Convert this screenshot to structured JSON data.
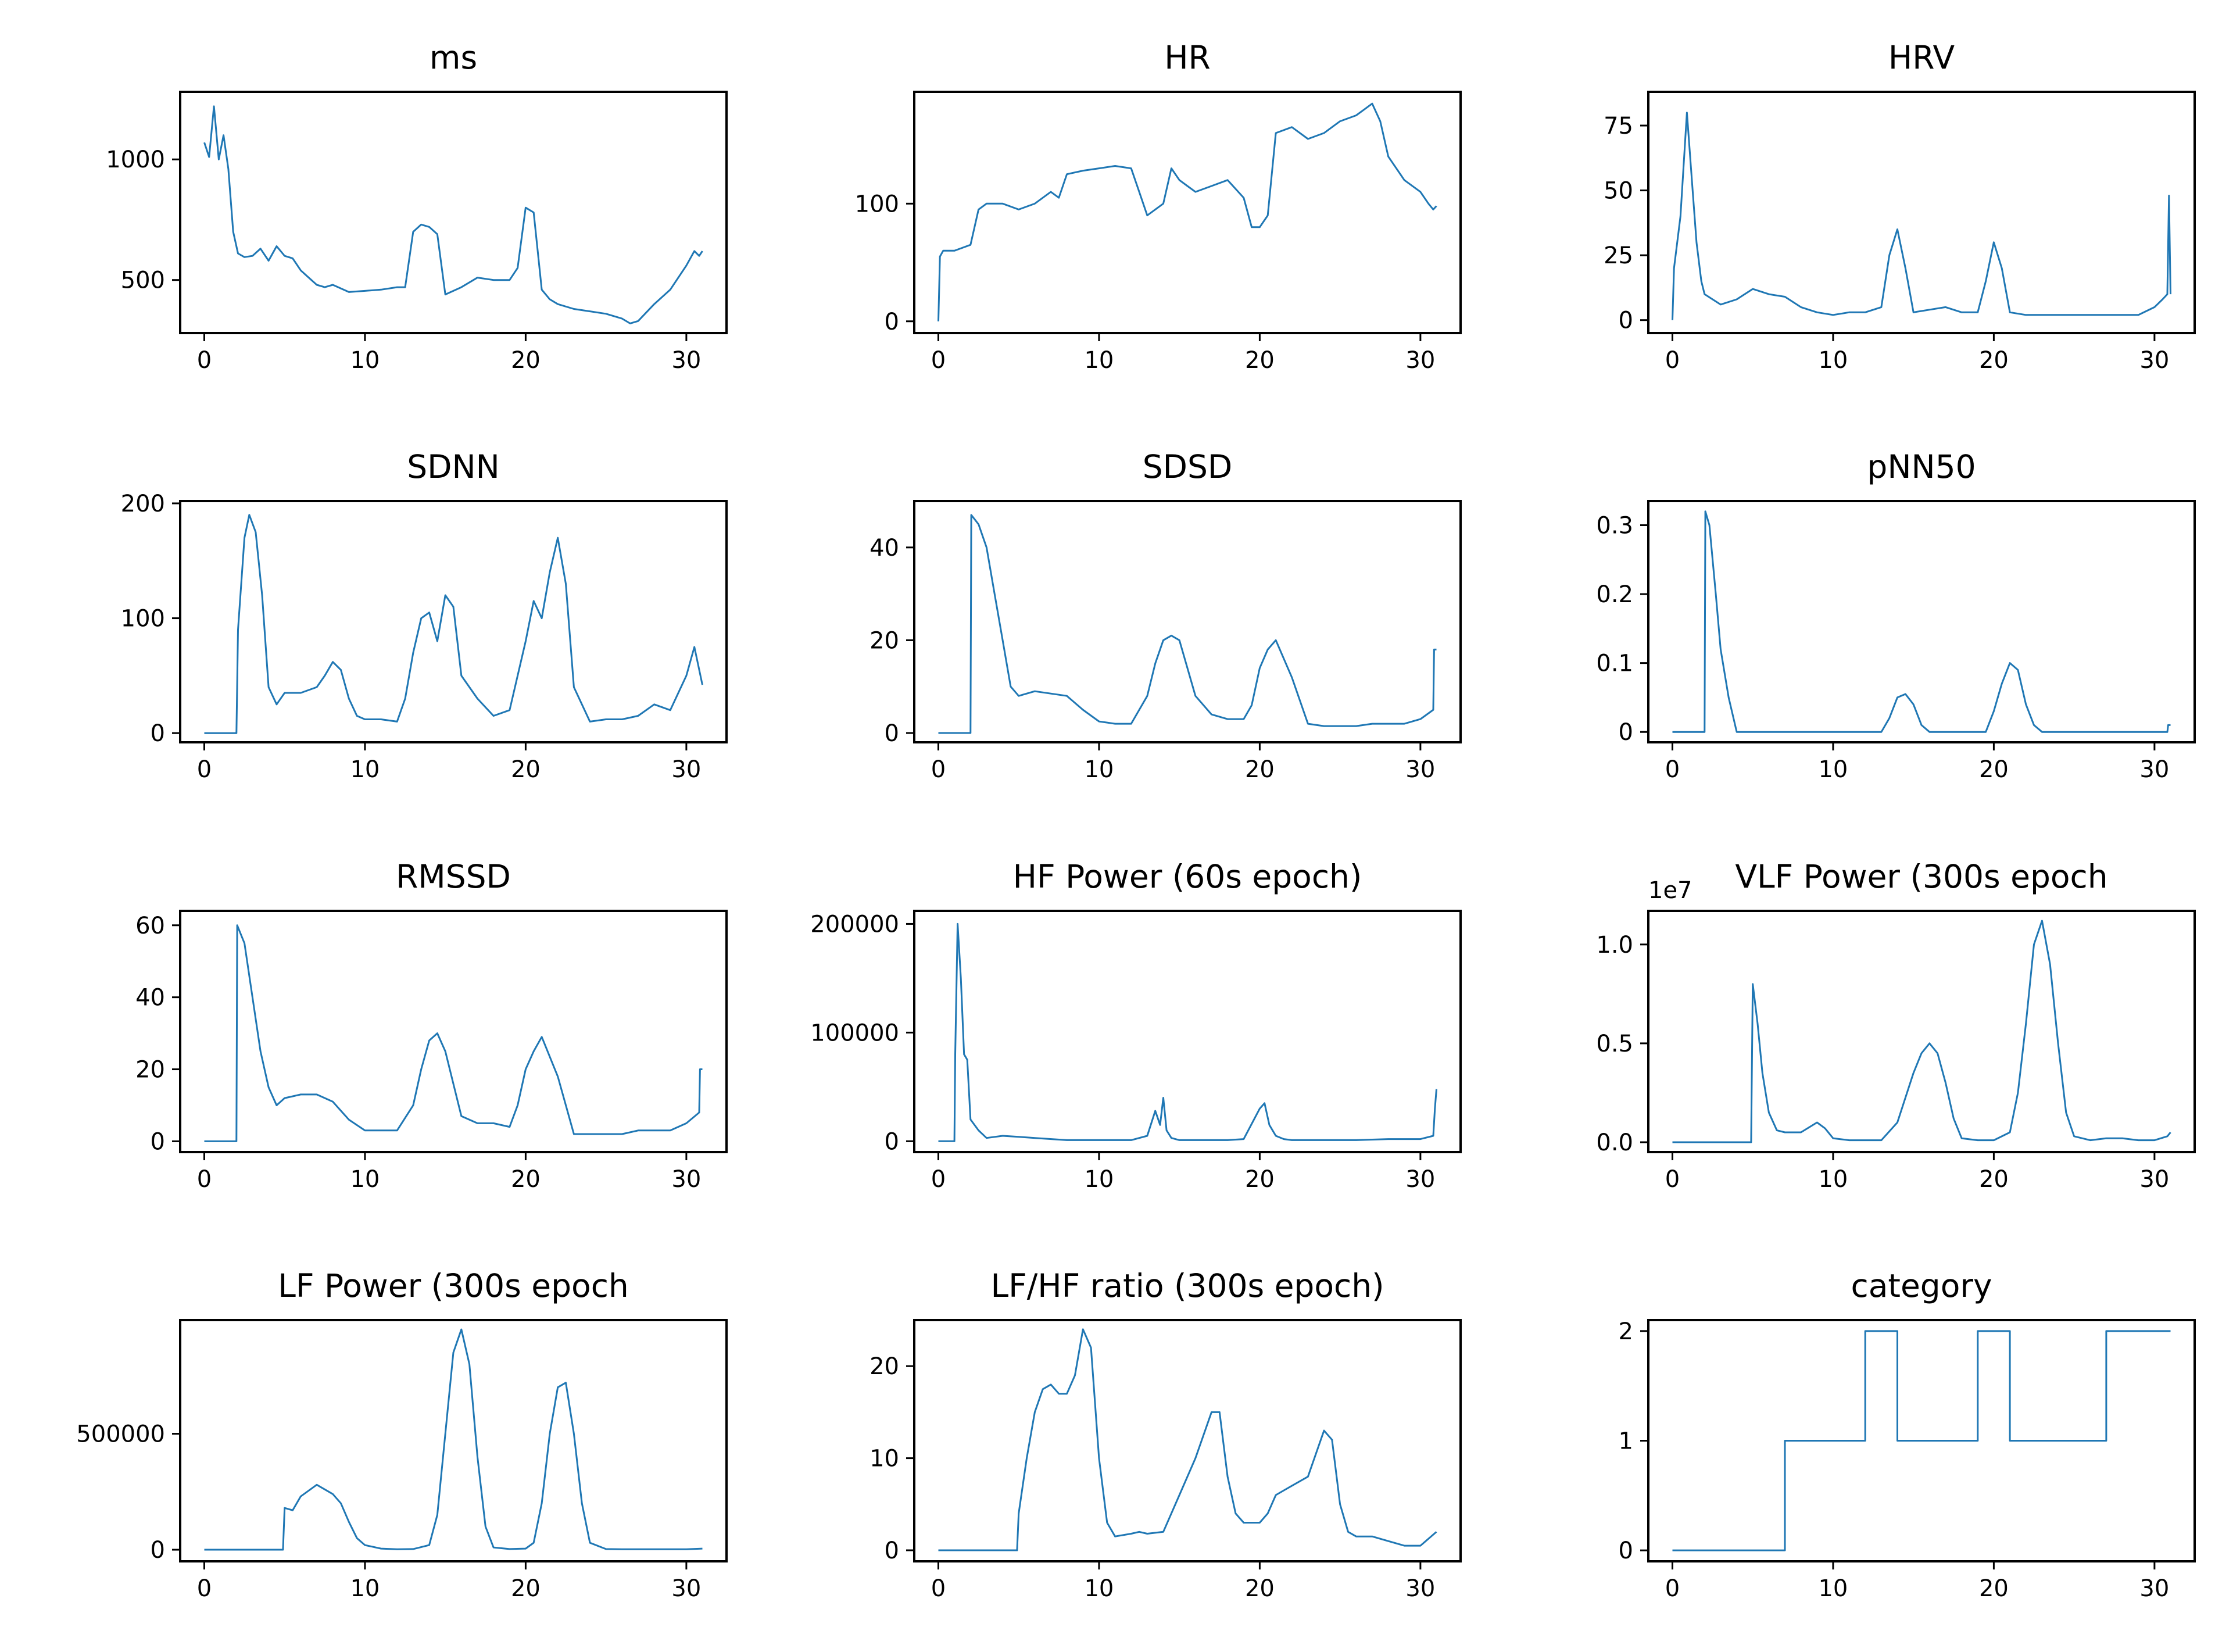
{
  "figure": {
    "line_color": "#1f77b4"
  },
  "chart_data": [
    {
      "type": "line",
      "title": "ms",
      "xlim": [
        -1.5,
        32.5
      ],
      "ylim": [
        280,
        1280
      ],
      "xticks": [
        0,
        10,
        20,
        30
      ],
      "yticks": [
        500,
        1000
      ],
      "x": [
        0,
        0.3,
        0.6,
        0.9,
        1.2,
        1.5,
        1.8,
        2.1,
        2.5,
        3,
        3.5,
        4,
        4.5,
        5,
        5.5,
        6,
        6.5,
        7,
        7.5,
        8,
        9,
        10,
        11,
        12,
        12.5,
        13,
        13.5,
        14,
        14.5,
        15,
        16,
        17,
        18,
        19,
        19.5,
        20,
        20.5,
        21,
        21.5,
        22,
        23,
        24,
        25,
        26,
        26.5,
        27,
        28,
        29,
        30,
        30.5,
        30.8,
        31
      ],
      "series": [
        {
          "values": [
            1070,
            1010,
            1220,
            1000,
            1100,
            960,
            700,
            610,
            595,
            600,
            630,
            580,
            640,
            600,
            590,
            540,
            510,
            480,
            470,
            480,
            450,
            455,
            460,
            470,
            470,
            700,
            730,
            720,
            690,
            440,
            470,
            510,
            500,
            500,
            550,
            800,
            780,
            460,
            420,
            400,
            380,
            370,
            360,
            340,
            320,
            330,
            400,
            460,
            560,
            620,
            600,
            620
          ]
        }
      ]
    },
    {
      "type": "line",
      "title": "HR",
      "xlim": [
        -1.5,
        32.5
      ],
      "ylim": [
        -10,
        195
      ],
      "xticks": [
        0,
        10,
        20,
        30
      ],
      "yticks": [
        0,
        100
      ],
      "x": [
        0,
        0.1,
        0.3,
        1,
        2,
        2.5,
        3,
        4,
        5,
        6,
        7,
        7.5,
        8,
        9,
        10,
        11,
        12,
        12.5,
        13,
        13.5,
        14,
        14.5,
        15,
        15.5,
        16,
        17,
        18,
        19,
        19.5,
        20,
        20.5,
        21,
        22,
        23,
        24,
        25,
        26,
        26.5,
        27,
        27.5,
        28,
        29,
        30,
        30.5,
        30.8,
        31
      ],
      "series": [
        {
          "values": [
            0,
            55,
            60,
            60,
            65,
            95,
            100,
            100,
            95,
            100,
            110,
            105,
            125,
            128,
            130,
            132,
            130,
            110,
            90,
            95,
            100,
            130,
            120,
            115,
            110,
            115,
            120,
            105,
            80,
            80,
            90,
            160,
            165,
            155,
            160,
            170,
            175,
            180,
            185,
            170,
            140,
            120,
            110,
            100,
            95,
            98
          ]
        }
      ]
    },
    {
      "type": "line",
      "title": "HRV",
      "xlim": [
        -1.5,
        32.5
      ],
      "ylim": [
        -5,
        88
      ],
      "xticks": [
        0,
        10,
        20,
        30
      ],
      "yticks": [
        0,
        25,
        50,
        75
      ],
      "x": [
        0,
        0.1,
        0.5,
        0.9,
        1.2,
        1.5,
        1.8,
        2,
        2.5,
        3,
        4,
        5,
        6,
        7,
        8,
        9,
        10,
        11,
        12,
        13,
        13.5,
        14,
        14.5,
        15,
        16,
        17,
        18,
        19,
        19.5,
        20,
        20.5,
        21,
        22,
        23,
        24,
        25,
        26,
        27,
        28,
        29,
        30,
        30.5,
        30.8,
        30.9,
        31
      ],
      "series": [
        {
          "values": [
            0,
            20,
            40,
            80,
            55,
            30,
            15,
            10,
            8,
            6,
            8,
            12,
            10,
            9,
            5,
            3,
            2,
            3,
            3,
            5,
            25,
            35,
            20,
            3,
            4,
            5,
            3,
            3,
            15,
            30,
            20,
            3,
            2,
            2,
            2,
            2,
            2,
            2,
            2,
            2,
            5,
            8,
            10,
            48,
            10
          ]
        }
      ]
    },
    {
      "type": "line",
      "title": "SDNN",
      "xlim": [
        -1.5,
        32.5
      ],
      "ylim": [
        -8,
        202
      ],
      "xticks": [
        0,
        10,
        20,
        30
      ],
      "yticks": [
        0,
        100,
        200
      ],
      "x": [
        0,
        1,
        2,
        2.1,
        2.5,
        2.8,
        3.2,
        3.6,
        4,
        4.5,
        5,
        6,
        7,
        7.5,
        8,
        8.5,
        9,
        9.5,
        10,
        11,
        12,
        12.5,
        13,
        13.5,
        14,
        14.5,
        15,
        15.5,
        16,
        17,
        18,
        19,
        20,
        20.5,
        21,
        21.5,
        22,
        22.5,
        23,
        24,
        25,
        26,
        27,
        28,
        29,
        30,
        30.5,
        31
      ],
      "series": [
        {
          "values": [
            0,
            0,
            0,
            90,
            170,
            190,
            175,
            120,
            40,
            25,
            35,
            35,
            40,
            50,
            62,
            55,
            30,
            15,
            12,
            12,
            10,
            30,
            70,
            100,
            105,
            80,
            120,
            110,
            50,
            30,
            15,
            20,
            80,
            115,
            100,
            140,
            170,
            130,
            40,
            10,
            12,
            12,
            15,
            25,
            20,
            50,
            75,
            42
          ]
        }
      ]
    },
    {
      "type": "line",
      "title": "SDSD",
      "xlim": [
        -1.5,
        32.5
      ],
      "ylim": [
        -2,
        50
      ],
      "xticks": [
        0,
        10,
        20,
        30
      ],
      "yticks": [
        0,
        20,
        40
      ],
      "x": [
        0,
        1,
        2,
        2.05,
        2.5,
        3,
        3.5,
        4,
        4.5,
        5,
        6,
        7,
        8,
        9,
        10,
        11,
        12,
        13,
        13.5,
        14,
        14.5,
        15,
        16,
        17,
        18,
        19,
        19.5,
        20,
        20.5,
        21,
        22,
        23,
        24,
        25,
        26,
        27,
        28,
        29,
        30,
        30.8,
        30.85,
        31
      ],
      "series": [
        {
          "values": [
            0,
            0,
            0,
            47,
            45,
            40,
            30,
            20,
            10,
            8,
            9,
            8.5,
            8,
            5,
            2.5,
            2,
            2,
            8,
            15,
            20,
            21,
            20,
            8,
            4,
            3,
            3,
            6,
            14,
            18,
            20,
            12,
            2,
            1.5,
            1.5,
            1.5,
            2,
            2,
            2,
            3,
            5,
            18,
            18
          ]
        }
      ]
    },
    {
      "type": "line",
      "title": "pNN50",
      "xlim": [
        -1.5,
        32.5
      ],
      "ylim": [
        -0.015,
        0.335
      ],
      "xticks": [
        0,
        10,
        20,
        30
      ],
      "yticks": [
        0.0,
        0.1,
        0.2,
        0.3
      ],
      "x": [
        0,
        1,
        2,
        2.05,
        2.3,
        2.7,
        3,
        3.5,
        4,
        5,
        10,
        12,
        13,
        13.5,
        14,
        14.5,
        15,
        15.5,
        16,
        18,
        19,
        19.5,
        20,
        20.5,
        21,
        21.5,
        22,
        22.5,
        23,
        25,
        27,
        30,
        30.8,
        30.85,
        31
      ],
      "series": [
        {
          "values": [
            0,
            0,
            0,
            0.32,
            0.3,
            0.2,
            0.12,
            0.05,
            0,
            0,
            0,
            0,
            0,
            0.02,
            0.05,
            0.055,
            0.04,
            0.01,
            0,
            0,
            0,
            0,
            0.03,
            0.07,
            0.1,
            0.09,
            0.04,
            0.01,
            0,
            0,
            0,
            0,
            0,
            0.01,
            0.01
          ]
        }
      ]
    },
    {
      "type": "line",
      "title": "RMSSD",
      "xlim": [
        -1.5,
        32.5
      ],
      "ylim": [
        -3,
        64
      ],
      "xticks": [
        0,
        10,
        20,
        30
      ],
      "yticks": [
        0,
        20,
        40,
        60
      ],
      "x": [
        0,
        1,
        2,
        2.05,
        2.5,
        3,
        3.5,
        4,
        4.5,
        5,
        6,
        7,
        8,
        9,
        10,
        11,
        12,
        13,
        13.5,
        14,
        14.5,
        15,
        16,
        17,
        18,
        19,
        19.5,
        20,
        20.5,
        21,
        22,
        23,
        24,
        25,
        26,
        27,
        28,
        29,
        30,
        30.8,
        30.85,
        31
      ],
      "series": [
        {
          "values": [
            0,
            0,
            0,
            60,
            55,
            40,
            25,
            15,
            10,
            12,
            13,
            13,
            11,
            6,
            3,
            3,
            3,
            10,
            20,
            28,
            30,
            25,
            7,
            5,
            5,
            4,
            10,
            20,
            25,
            29,
            18,
            2,
            2,
            2,
            2,
            3,
            3,
            3,
            5,
            8,
            20,
            20
          ]
        }
      ]
    },
    {
      "type": "line",
      "title": "HF Power (60s epoch)",
      "xlim": [
        -1.5,
        32.5
      ],
      "ylim": [
        -10000,
        212000
      ],
      "xticks": [
        0,
        10,
        20,
        30
      ],
      "yticks": [
        0,
        100000,
        200000
      ],
      "x": [
        0,
        0.5,
        1,
        1.05,
        1.2,
        1.4,
        1.6,
        1.8,
        2,
        2.5,
        3,
        4,
        5,
        6,
        8,
        10,
        12,
        13,
        13.5,
        13.8,
        14,
        14.2,
        14.5,
        15,
        16,
        18,
        19,
        20,
        20.3,
        20.6,
        21,
        21.5,
        22,
        24,
        26,
        28,
        30,
        30.8,
        30.9,
        31
      ],
      "series": [
        {
          "values": [
            0,
            0,
            0,
            80000,
            200000,
            150000,
            80000,
            75000,
            20000,
            10000,
            3000,
            5000,
            4000,
            3000,
            1000,
            1000,
            1000,
            5000,
            28000,
            15000,
            40000,
            10000,
            3000,
            1000,
            1000,
            1000,
            2000,
            30000,
            35000,
            15000,
            5000,
            2000,
            1000,
            1000,
            1000,
            2000,
            2000,
            5000,
            30000,
            48000
          ]
        }
      ]
    },
    {
      "type": "line",
      "title": "VLF Power (300s epoch",
      "offset_label": "1e7",
      "xlim": [
        -1.5,
        32.5
      ],
      "ylim": [
        -0.05,
        1.17
      ],
      "xticks": [
        0,
        10,
        20,
        30
      ],
      "yticks": [
        0.0,
        0.5,
        1.0
      ],
      "ytick_labels": [
        "0.0",
        "0.5",
        "1.0"
      ],
      "x": [
        0,
        4.9,
        5,
        5.3,
        5.6,
        6,
        6.5,
        7,
        8,
        9,
        9.5,
        10,
        11,
        12,
        13,
        14,
        15,
        15.5,
        16,
        16.5,
        17,
        17.5,
        18,
        19,
        20,
        21,
        21.5,
        22,
        22.5,
        23,
        23.5,
        24,
        24.5,
        25,
        26,
        27,
        28,
        29,
        30,
        30.8,
        31
      ],
      "series": [
        {
          "values": [
            0,
            0,
            0.8,
            0.6,
            0.35,
            0.15,
            0.06,
            0.05,
            0.05,
            0.1,
            0.07,
            0.02,
            0.01,
            0.01,
            0.01,
            0.1,
            0.35,
            0.45,
            0.5,
            0.45,
            0.3,
            0.12,
            0.02,
            0.01,
            0.01,
            0.05,
            0.25,
            0.6,
            1.0,
            1.12,
            0.9,
            0.5,
            0.15,
            0.03,
            0.01,
            0.02,
            0.02,
            0.01,
            0.01,
            0.03,
            0.05
          ]
        }
      ]
    },
    {
      "type": "line",
      "title": "LF Power (300s epoch",
      "xlim": [
        -1.5,
        32.5
      ],
      "ylim": [
        -50000,
        990000
      ],
      "xticks": [
        0,
        10,
        20,
        30
      ],
      "yticks": [
        0,
        500000
      ],
      "x": [
        0,
        4.9,
        5,
        5.5,
        6,
        7,
        8,
        8.5,
        9,
        9.5,
        10,
        11,
        12,
        13,
        14,
        14.5,
        15,
        15.5,
        16,
        16.5,
        17,
        17.5,
        18,
        19,
        20,
        20.5,
        21,
        21.5,
        22,
        22.5,
        23,
        23.5,
        24,
        25,
        26,
        28,
        30,
        31
      ],
      "series": [
        {
          "values": [
            0,
            0,
            180000,
            170000,
            230000,
            280000,
            240000,
            200000,
            120000,
            50000,
            20000,
            5000,
            2000,
            3000,
            20000,
            150000,
            500000,
            850000,
            950000,
            800000,
            400000,
            100000,
            10000,
            3000,
            5000,
            30000,
            200000,
            500000,
            700000,
            720000,
            500000,
            200000,
            30000,
            3000,
            2000,
            2000,
            2000,
            5000
          ]
        }
      ]
    },
    {
      "type": "line",
      "title": "LF/HF ratio (300s epoch)",
      "xlim": [
        -1.5,
        32.5
      ],
      "ylim": [
        -1.2,
        25
      ],
      "xticks": [
        0,
        10,
        20,
        30
      ],
      "yticks": [
        0,
        10,
        20
      ],
      "x": [
        0,
        4.9,
        5,
        5.5,
        6,
        6.5,
        7,
        7.5,
        8,
        8.5,
        9,
        9.5,
        10,
        10.5,
        11,
        12,
        12.5,
        13,
        14,
        15,
        16,
        17,
        17.5,
        18,
        18.5,
        19,
        20,
        20.5,
        21,
        21.5,
        22,
        23,
        24,
        24.5,
        25,
        25.5,
        26,
        27,
        28,
        29,
        30,
        31
      ],
      "series": [
        {
          "values": [
            0,
            0,
            4,
            10,
            15,
            17.5,
            18,
            17,
            17,
            19,
            24,
            22,
            10,
            3,
            1.5,
            1.8,
            2,
            1.8,
            2,
            6,
            10,
            15,
            15,
            8,
            4,
            3,
            3,
            4,
            6,
            6.5,
            7,
            8,
            13,
            12,
            5,
            2,
            1.5,
            1.5,
            1,
            0.5,
            0.5,
            2
          ]
        }
      ]
    },
    {
      "type": "line",
      "title": "category",
      "xlim": [
        -1.5,
        32.5
      ],
      "ylim": [
        -0.1,
        2.1
      ],
      "xticks": [
        0,
        10,
        20,
        30
      ],
      "yticks": [
        0,
        1,
        2
      ],
      "x": [
        0,
        7,
        7,
        12,
        12,
        14,
        14,
        19,
        19,
        21,
        21,
        27,
        27,
        31
      ],
      "series": [
        {
          "values": [
            0,
            0,
            1,
            1,
            2,
            2,
            1,
            1,
            2,
            2,
            1,
            1,
            2,
            2
          ]
        }
      ]
    }
  ]
}
